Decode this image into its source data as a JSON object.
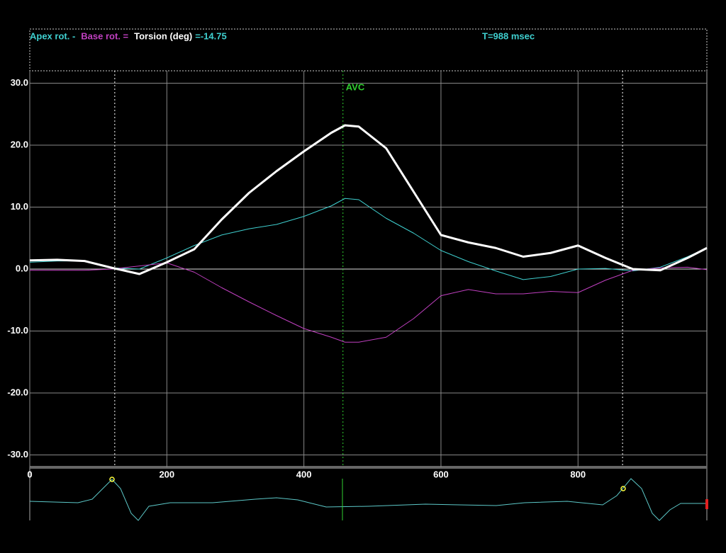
{
  "chart_data": {
    "type": "line",
    "readout": "=-14.75",
    "time_readout": "T=988 msec",
    "x": [
      0,
      40,
      80,
      120,
      160,
      200,
      240,
      280,
      320,
      360,
      400,
      440,
      460,
      480,
      520,
      560,
      600,
      640,
      680,
      720,
      760,
      800,
      840,
      880,
      920,
      960,
      988
    ],
    "series": [
      {
        "name": "Apex rot. -",
        "color": "#3fd0d0",
        "width": 1,
        "values": [
          1.1,
          1.3,
          1.3,
          0.2,
          0,
          1.8,
          3.8,
          5.5,
          6.5,
          7.2,
          8.5,
          10.2,
          11.4,
          11.2,
          8.2,
          5.8,
          3.0,
          1.2,
          -0.3,
          -1.7,
          -1.2,
          0,
          0.1,
          -0.3,
          0.3,
          2.0,
          3.4
        ]
      },
      {
        "name": "Base rot. =",
        "color": "#c040c0",
        "width": 1,
        "values": [
          -0.2,
          -0.2,
          -0.2,
          0,
          0.5,
          1.0,
          -0.5,
          -3,
          -5.3,
          -7.5,
          -9.6,
          -11,
          -11.8,
          -11.8,
          -11,
          -8,
          -4.3,
          -3.3,
          -4,
          -4,
          -3.6,
          -3.8,
          -1.8,
          -0.2,
          0.2,
          0.3,
          -0.1
        ]
      },
      {
        "name": "Torsion (deg)",
        "color": "#ffffff",
        "width": 3,
        "values": [
          1.4,
          1.5,
          1.3,
          0.2,
          -0.8,
          1.1,
          3.2,
          8,
          12.3,
          15.8,
          19,
          22,
          23.2,
          23,
          19.5,
          12.5,
          5.5,
          4.3,
          3.4,
          2.0,
          2.6,
          3.8,
          1.8,
          0,
          -0.2,
          1.8,
          3.4
        ]
      }
    ],
    "markers": [
      {
        "x": 124,
        "color": "#ffffff"
      },
      {
        "x": 457,
        "color": "#30d030",
        "label": "AVC"
      },
      {
        "x": 865,
        "color": "#ffffff"
      }
    ],
    "xlim": [
      0,
      988
    ],
    "xticks": [
      0,
      200,
      400,
      600,
      800
    ],
    "ylim": [
      -32,
      32
    ],
    "yticks": [
      {
        "value": 30,
        "label": "30.0"
      },
      {
        "value": 20,
        "label": "20.0"
      },
      {
        "value": 10,
        "label": "10.0"
      },
      {
        "value": 0,
        "label": "0.0"
      },
      {
        "value": -10,
        "label": "-10.0"
      },
      {
        "value": -20,
        "label": "-20.0"
      },
      {
        "value": -30,
        "label": "-30.0"
      }
    ],
    "grid": true
  }
}
